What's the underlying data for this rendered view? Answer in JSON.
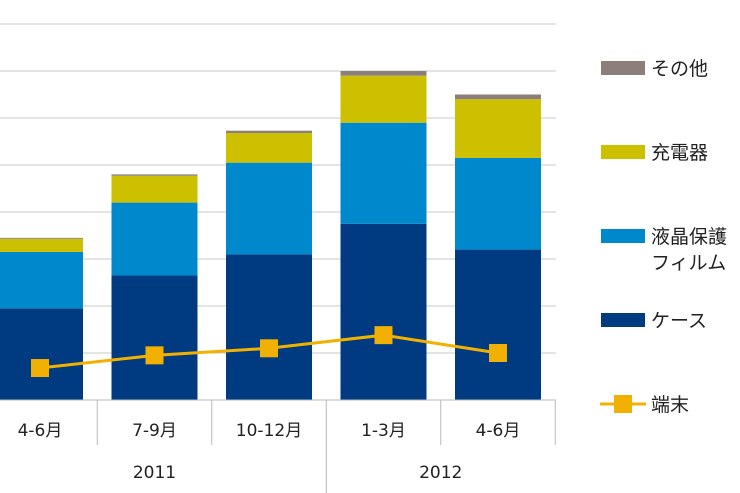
{
  "chart_data": {
    "type": "bar",
    "stacked": true,
    "categories": [
      "4-6月",
      "7-9月",
      "10-12月",
      "1-3月",
      "4-6月"
    ],
    "groups": [
      {
        "label": "2011",
        "span": 3
      },
      {
        "label": "2012",
        "span": 2
      }
    ],
    "series": [
      {
        "name": "ケース",
        "color": "#003a80",
        "values": [
          1.95,
          2.65,
          3.1,
          3.75,
          3.2
        ]
      },
      {
        "name": "液晶保護フィルム",
        "color": "#0088cc",
        "values": [
          1.2,
          1.55,
          1.95,
          2.15,
          1.95
        ]
      },
      {
        "name": "充電器",
        "color": "#ccc000",
        "values": [
          0.28,
          0.57,
          0.63,
          1.0,
          1.25
        ]
      },
      {
        "name": "その他",
        "color": "#8c7f7a",
        "values": [
          0.02,
          0.03,
          0.05,
          0.1,
          0.1
        ]
      }
    ],
    "line_series": {
      "name": "端末",
      "color": "#f2b000",
      "values": [
        0.68,
        0.95,
        1.1,
        1.38,
        1.0
      ]
    },
    "ylim": [
      0,
      8
    ],
    "grid": true,
    "legend_position": "right",
    "legend": [
      {
        "label": "その他",
        "color": "#8c7f7a",
        "kind": "box"
      },
      {
        "label": "充電器",
        "color": "#ccc000",
        "kind": "box"
      },
      {
        "label": "液晶保護フィルム",
        "color": "#0088cc",
        "kind": "box"
      },
      {
        "label": "ケース",
        "color": "#003a80",
        "kind": "box"
      },
      {
        "label": "端末",
        "color": "#f2b000",
        "kind": "line-marker"
      }
    ]
  }
}
